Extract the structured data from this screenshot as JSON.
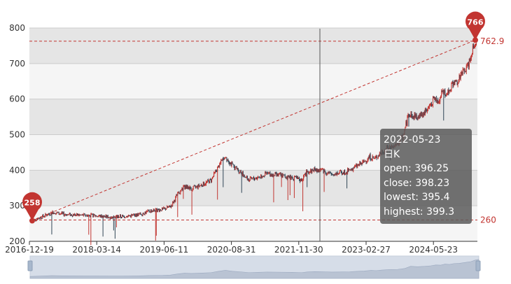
{
  "chart_data": {
    "type": "candlestick",
    "series_name": "日K",
    "x_tick_labels": [
      "2016-12-19",
      "2018-03-14",
      "2019-06-11",
      "2020-08-31",
      "2021-11-30",
      "2023-02-27",
      "2024-05-23"
    ],
    "y_tick_labels": [
      "200",
      "300",
      "400",
      "500",
      "600",
      "700",
      "800"
    ],
    "ylim": [
      200,
      800
    ],
    "approx_close_path": [
      [
        0,
        258
      ],
      [
        15,
        270
      ],
      [
        30,
        282
      ],
      [
        45,
        276
      ],
      [
        65,
        274
      ],
      [
        90,
        272
      ],
      [
        110,
        268
      ],
      [
        130,
        270
      ],
      [
        150,
        275
      ],
      [
        165,
        285
      ],
      [
        185,
        290
      ],
      [
        195,
        298
      ],
      [
        205,
        332
      ],
      [
        215,
        355
      ],
      [
        225,
        348
      ],
      [
        240,
        360
      ],
      [
        252,
        372
      ],
      [
        262,
        410
      ],
      [
        272,
        440
      ],
      [
        282,
        412
      ],
      [
        292,
        398
      ],
      [
        305,
        372
      ],
      [
        318,
        380
      ],
      [
        330,
        390
      ],
      [
        350,
        385
      ],
      [
        365,
        380
      ],
      [
        378,
        372
      ],
      [
        386,
        392
      ],
      [
        396,
        402
      ],
      [
        410,
        398
      ],
      [
        420,
        388
      ],
      [
        430,
        392
      ],
      [
        445,
        398
      ],
      [
        455,
        410
      ],
      [
        465,
        420
      ],
      [
        475,
        438
      ],
      [
        482,
        432
      ],
      [
        490,
        448
      ],
      [
        500,
        462
      ],
      [
        512,
        468
      ],
      [
        522,
        495
      ],
      [
        530,
        560
      ],
      [
        540,
        548
      ],
      [
        550,
        560
      ],
      [
        558,
        575
      ],
      [
        565,
        600
      ],
      [
        572,
        595
      ],
      [
        578,
        625
      ],
      [
        584,
        615
      ],
      [
        590,
        640
      ],
      [
        598,
        650
      ],
      [
        608,
        680
      ],
      [
        614,
        700
      ],
      [
        620,
        745
      ],
      [
        625,
        766
      ]
    ],
    "mark_points": [
      {
        "label": "258",
        "value": 258,
        "position": "first"
      },
      {
        "label": "766",
        "value": 766,
        "position": "last"
      }
    ],
    "mark_lines": [
      {
        "label": "260",
        "value": 260
      },
      {
        "label": "762.9",
        "value": 762.9
      }
    ],
    "tooltip": {
      "date": "2022-05-23",
      "series": "日K",
      "open_label": "open: 396.25",
      "close_label": "close: 398.23",
      "lowest_label": "lowest: 395.4",
      "highest_label": "highest: 399.3"
    },
    "colors": {
      "up": "#c23531",
      "down": "#314656",
      "split_band": "#e5e5e5",
      "plot_bg": "#f5f5f5"
    },
    "grid": true,
    "legend": "none",
    "data_zoom": "slider-bottom"
  }
}
